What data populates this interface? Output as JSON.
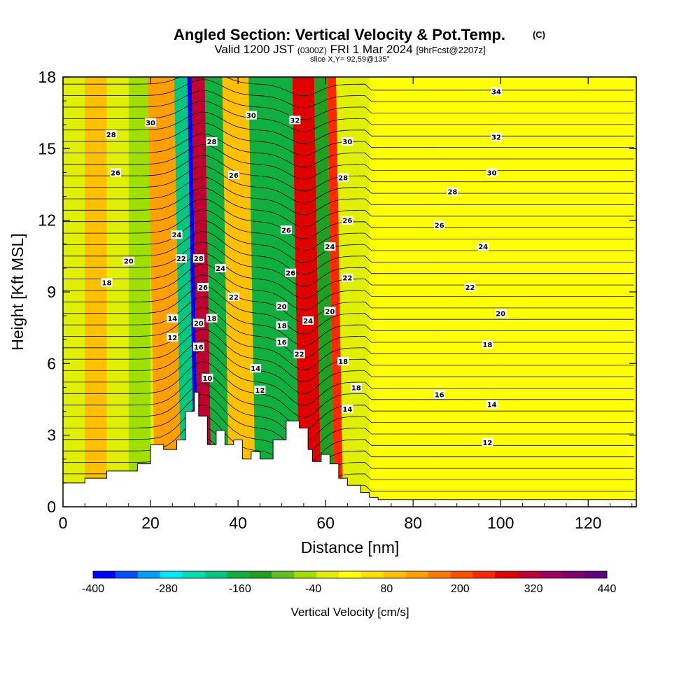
{
  "header": {
    "title": "Angled Section: Vertical Velocity & Pot.Temp.",
    "title_unit": "(C)",
    "valid_prefix": "Valid 1200 JST",
    "valid_utc": "(0300Z)",
    "valid_date": "FRI 1 Mar 2024",
    "forecast_tag": "[9hrFcst@2207z]",
    "slice_text": "slice X,Y= 92,59@135°"
  },
  "chart_data": {
    "type": "heatmap",
    "xlabel": "Distance [nm]",
    "ylabel": "Height [Kft MSL]",
    "xlim": [
      0,
      131
    ],
    "ylim": [
      0,
      18
    ],
    "x_ticks": [
      0,
      20,
      40,
      60,
      80,
      100,
      120
    ],
    "y_ticks": [
      0,
      3,
      6,
      9,
      12,
      15,
      18
    ],
    "colorbar": {
      "label": "Vertical Velocity [cm/s]",
      "min": -400,
      "max": 440,
      "step": 40,
      "tick_values": [
        "-400",
        "-280",
        "-160",
        "-40",
        "80",
        "200",
        "320",
        "440"
      ],
      "colors": [
        "#0000ff",
        "#0050ff",
        "#00a0ff",
        "#00e8ff",
        "#00e0b0",
        "#00c880",
        "#10b040",
        "#20a020",
        "#60c020",
        "#a0e000",
        "#e0f000",
        "#ffff00",
        "#ffe000",
        "#ffc000",
        "#ffa000",
        "#ff7800",
        "#ff5000",
        "#ff2800",
        "#e00000",
        "#c00030",
        "#a00060",
        "#800070",
        "#600080"
      ]
    },
    "velocity_background": [
      {
        "x": [
          5,
          10
        ],
        "w": 120
      },
      {
        "x": [
          15,
          20
        ],
        "w": -40
      },
      {
        "x": [
          21,
          27
        ],
        "w": 160
      },
      {
        "x": [
          27,
          30
        ],
        "w": -200
      },
      {
        "x": [
          30,
          31
        ],
        "w": -400
      },
      {
        "x": [
          31,
          34
        ],
        "w": 360
      },
      {
        "x": [
          34,
          38
        ],
        "w": -160
      },
      {
        "x": [
          38,
          44
        ],
        "w": 120
      },
      {
        "x": [
          44,
          54
        ],
        "w": -160
      },
      {
        "x": [
          54,
          59
        ],
        "w": 320
      },
      {
        "x": [
          59,
          62
        ],
        "w": -120
      },
      {
        "x": [
          62,
          64
        ],
        "w": 280
      },
      {
        "x": [
          64,
          70
        ],
        "w": 0
      },
      {
        "x": [
          70,
          85
        ],
        "w": 40
      },
      {
        "x": [
          85,
          131
        ],
        "w": 40
      }
    ],
    "terrain_top_kft": [
      [
        0,
        1.0
      ],
      [
        5,
        1.2
      ],
      [
        10,
        1.5
      ],
      [
        14,
        1.5
      ],
      [
        17,
        1.8
      ],
      [
        20,
        2.6
      ],
      [
        23,
        2.4
      ],
      [
        26,
        2.8
      ],
      [
        28,
        4.0
      ],
      [
        30,
        4.8
      ],
      [
        31,
        3.8
      ],
      [
        33,
        2.6
      ],
      [
        35,
        3.2
      ],
      [
        37,
        2.6
      ],
      [
        39,
        2.8
      ],
      [
        41,
        2.0
      ],
      [
        43,
        2.3
      ],
      [
        45,
        2.0
      ],
      [
        48,
        2.8
      ],
      [
        51,
        3.6
      ],
      [
        54,
        3.3
      ],
      [
        56,
        2.4
      ],
      [
        57,
        1.9
      ],
      [
        59,
        2.2
      ],
      [
        61,
        1.8
      ],
      [
        63,
        1.2
      ],
      [
        65,
        0.9
      ],
      [
        68,
        0.6
      ],
      [
        70,
        0.4
      ],
      [
        72,
        0.3
      ],
      [
        131,
        0.3
      ]
    ],
    "contour_labels": [
      {
        "text": "34",
        "x": 99,
        "y": 17.4
      },
      {
        "text": "32",
        "x": 99,
        "y": 15.5
      },
      {
        "text": "30",
        "x": 98,
        "y": 14.0
      },
      {
        "text": "28",
        "x": 89,
        "y": 13.2
      },
      {
        "text": "26",
        "x": 86,
        "y": 11.8
      },
      {
        "text": "24",
        "x": 96,
        "y": 10.9
      },
      {
        "text": "22",
        "x": 93,
        "y": 9.2
      },
      {
        "text": "20",
        "x": 100,
        "y": 8.1
      },
      {
        "text": "18",
        "x": 97,
        "y": 6.8
      },
      {
        "text": "16",
        "x": 86,
        "y": 4.7
      },
      {
        "text": "14",
        "x": 98,
        "y": 4.3
      },
      {
        "text": "12",
        "x": 97,
        "y": 2.7
      },
      {
        "text": "28",
        "x": 11,
        "y": 15.6
      },
      {
        "text": "26",
        "x": 12,
        "y": 14.0
      },
      {
        "text": "30",
        "x": 20,
        "y": 16.1
      },
      {
        "text": "20",
        "x": 15,
        "y": 10.3
      },
      {
        "text": "18",
        "x": 10,
        "y": 9.4
      },
      {
        "text": "24",
        "x": 26,
        "y": 11.4
      },
      {
        "text": "22",
        "x": 27,
        "y": 10.4
      },
      {
        "text": "14",
        "x": 25,
        "y": 7.9
      },
      {
        "text": "12",
        "x": 25,
        "y": 7.1
      },
      {
        "text": "28",
        "x": 31,
        "y": 10.4
      },
      {
        "text": "26",
        "x": 32,
        "y": 9.2
      },
      {
        "text": "20",
        "x": 31,
        "y": 7.7
      },
      {
        "text": "16",
        "x": 31,
        "y": 6.7
      },
      {
        "text": "10",
        "x": 33,
        "y": 5.4
      },
      {
        "text": "18",
        "x": 34,
        "y": 7.9
      },
      {
        "text": "24",
        "x": 36,
        "y": 10.0
      },
      {
        "text": "22",
        "x": 39,
        "y": 8.8
      },
      {
        "text": "28",
        "x": 34,
        "y": 15.3
      },
      {
        "text": "26",
        "x": 39,
        "y": 13.9
      },
      {
        "text": "30",
        "x": 43,
        "y": 16.4
      },
      {
        "text": "14",
        "x": 44,
        "y": 5.8
      },
      {
        "text": "12",
        "x": 45,
        "y": 4.9
      },
      {
        "text": "32",
        "x": 53,
        "y": 16.2
      },
      {
        "text": "26",
        "x": 51,
        "y": 11.6
      },
      {
        "text": "26",
        "x": 52,
        "y": 9.8
      },
      {
        "text": "20",
        "x": 50,
        "y": 8.4
      },
      {
        "text": "18",
        "x": 50,
        "y": 7.6
      },
      {
        "text": "16",
        "x": 50,
        "y": 6.9
      },
      {
        "text": "22",
        "x": 54,
        "y": 6.4
      },
      {
        "text": "24",
        "x": 56,
        "y": 7.8
      },
      {
        "text": "20",
        "x": 61,
        "y": 8.2
      },
      {
        "text": "24",
        "x": 61,
        "y": 10.9
      },
      {
        "text": "22",
        "x": 65,
        "y": 9.6
      },
      {
        "text": "26",
        "x": 65,
        "y": 12.0
      },
      {
        "text": "28",
        "x": 64,
        "y": 13.8
      },
      {
        "text": "30",
        "x": 65,
        "y": 15.3
      },
      {
        "text": "18",
        "x": 64,
        "y": 6.1
      },
      {
        "text": "18",
        "x": 67,
        "y": 5.0
      },
      {
        "text": "14",
        "x": 65,
        "y": 4.1
      }
    ]
  }
}
